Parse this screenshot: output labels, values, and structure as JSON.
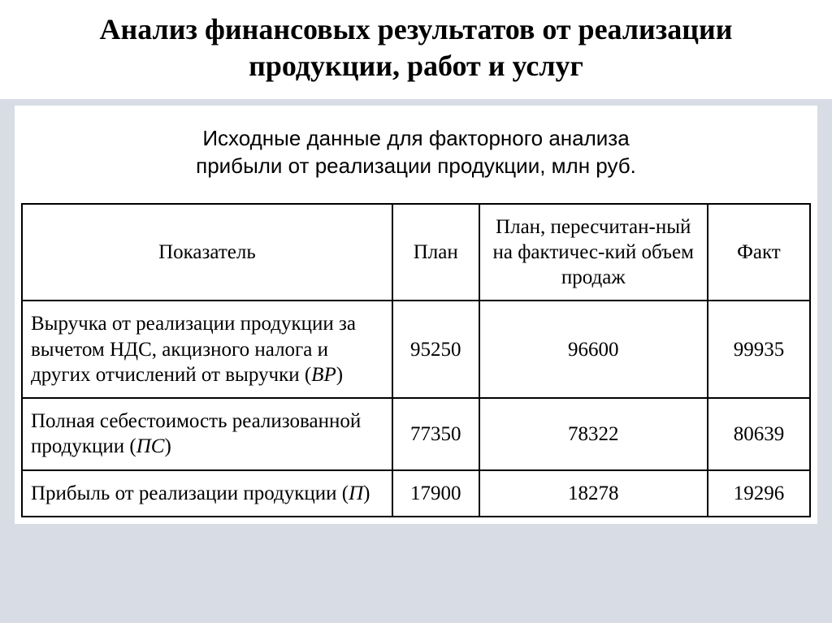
{
  "title": "Анализ финансовых результатов от реализации продукции, работ и услуг",
  "caption_line1": "Исходные данные для факторного анализа",
  "caption_line2": "прибыли от реализации продукции, млн руб.",
  "table": {
    "headers": {
      "indicator": "Показатель",
      "plan": "План",
      "recalc": "План, пересчитан-ный на фактичес-кий объем продаж",
      "fact": "Факт"
    },
    "rows": [
      {
        "indicator_pre": "Выручка от реализации продукции за вычетом НДС, акцизного налога и других отчислений от выручки (",
        "indicator_var": "ВР",
        "indicator_post": ")",
        "plan": "95250",
        "recalc": "96600",
        "fact": "99935"
      },
      {
        "indicator_pre": "Полная себестоимость реализованной продукции (",
        "indicator_var": "ПС",
        "indicator_post": ")",
        "plan": "77350",
        "recalc": "78322",
        "fact": "80639"
      },
      {
        "indicator_pre": "Прибыль от реализации продукции (",
        "indicator_var": "П",
        "indicator_post": ")",
        "plan": "17900",
        "recalc": "18278",
        "fact": "19296"
      }
    ],
    "styling": {
      "border_color": "#000000",
      "border_width": 2,
      "header_fontsize": 25,
      "cell_fontsize": 25,
      "caption_fontsize": 26,
      "title_fontsize": 36,
      "background_color": "#ffffff",
      "page_background": "#d8dce5",
      "col_widths_pct": [
        47,
        11,
        29,
        13
      ]
    }
  }
}
